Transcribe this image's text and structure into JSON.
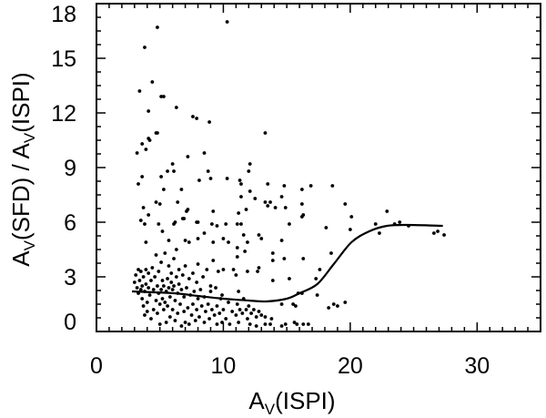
{
  "chart_data": {
    "type": "scatter",
    "title": "",
    "xlabel_parts": [
      "A",
      "V",
      "(ISPI)"
    ],
    "ylabel_parts": [
      "A",
      "V",
      "(SFD) / ",
      "A",
      "V",
      "(ISPI)"
    ],
    "xlim": [
      0,
      35
    ],
    "ylim": [
      0,
      18
    ],
    "xticks": [
      0,
      10,
      20,
      30
    ],
    "xtick_labels": [
      "0",
      "10",
      "20",
      "30"
    ],
    "yticks": [
      0,
      3,
      6,
      9,
      12,
      15,
      18
    ],
    "ytick_labels": [
      "0",
      "3",
      "6",
      "9",
      "12",
      "15",
      "18"
    ],
    "grid": false,
    "series": [
      {
        "name": "data points",
        "kind": "scatter",
        "color": "#000000",
        "points": [
          [
            4.8,
            16.7
          ],
          [
            10.3,
            17.0
          ],
          [
            3.8,
            15.6
          ],
          [
            4.4,
            13.7
          ],
          [
            3.4,
            13.2
          ],
          [
            5.1,
            12.9
          ],
          [
            5.3,
            12.9
          ],
          [
            6.3,
            12.3
          ],
          [
            4.1,
            12.1
          ],
          [
            7.6,
            11.8
          ],
          [
            7.9,
            11.7
          ],
          [
            8.9,
            11.5
          ],
          [
            13.3,
            10.9
          ],
          [
            4.7,
            10.9
          ],
          [
            4.8,
            10.9
          ],
          [
            4.2,
            10.5
          ],
          [
            4.1,
            10.6
          ],
          [
            3.6,
            10.3
          ],
          [
            3.9,
            10.0
          ],
          [
            3.2,
            9.8
          ],
          [
            7.2,
            9.6
          ],
          [
            8.5,
            9.8
          ],
          [
            6.0,
            9.2
          ],
          [
            12.1,
            9.2
          ],
          [
            8.8,
            8.8
          ],
          [
            5.6,
            8.8
          ],
          [
            6.1,
            8.8
          ],
          [
            12.0,
            8.8
          ],
          [
            3.6,
            8.5
          ],
          [
            5.1,
            8.5
          ],
          [
            9.0,
            8.4
          ],
          [
            10.3,
            8.4
          ],
          [
            8.1,
            8.3
          ],
          [
            11.3,
            8.3
          ],
          [
            3.3,
            8.1
          ],
          [
            11.4,
            8.1
          ],
          [
            13.5,
            8.1
          ],
          [
            14.8,
            8.0
          ],
          [
            16.9,
            8.0
          ],
          [
            18.6,
            8.0
          ],
          [
            16.2,
            7.8
          ],
          [
            5.3,
            7.8
          ],
          [
            6.7,
            7.8
          ],
          [
            12.1,
            7.7
          ],
          [
            14.6,
            7.4
          ],
          [
            11.4,
            7.4
          ],
          [
            12.5,
            7.3
          ],
          [
            13.3,
            7.1
          ],
          [
            13.7,
            7.1
          ],
          [
            6.4,
            7.1
          ],
          [
            4.7,
            7.1
          ],
          [
            5.0,
            7.0
          ],
          [
            19.6,
            7.0
          ],
          [
            16.2,
            7.0
          ],
          [
            13.5,
            6.9
          ],
          [
            7.2,
            6.7
          ],
          [
            7.1,
            6.6
          ],
          [
            3.7,
            6.8
          ],
          [
            9.2,
            6.6
          ],
          [
            11.2,
            6.5
          ],
          [
            22.9,
            6.6
          ],
          [
            11.8,
            6.7
          ],
          [
            14.9,
            6.8
          ],
          [
            14.1,
            6.8
          ],
          [
            16.2,
            6.3
          ],
          [
            16.3,
            6.4
          ],
          [
            20.1,
            6.3
          ],
          [
            4.1,
            6.4
          ],
          [
            6.8,
            6.2
          ],
          [
            6.9,
            6.2
          ],
          [
            3.5,
            6.1
          ],
          [
            3.8,
            5.9
          ],
          [
            4.9,
            5.9
          ],
          [
            6.1,
            5.9
          ],
          [
            6.2,
            6.0
          ],
          [
            7.9,
            6.0
          ],
          [
            8.0,
            6.0
          ],
          [
            9.1,
            5.9
          ],
          [
            9.5,
            5.8
          ],
          [
            10.2,
            5.9
          ],
          [
            11.1,
            5.9
          ],
          [
            11.4,
            5.9
          ],
          [
            15.2,
            5.9
          ],
          [
            18.1,
            5.7
          ],
          [
            20.0,
            5.6
          ],
          [
            22.0,
            5.9
          ],
          [
            23.5,
            5.9
          ],
          [
            23.9,
            6.0
          ],
          [
            24.6,
            5.8
          ],
          [
            5.2,
            5.5
          ],
          [
            8.5,
            5.4
          ],
          [
            11.6,
            5.3
          ],
          [
            12.8,
            5.3
          ],
          [
            13.0,
            5.1
          ],
          [
            22.3,
            5.4
          ],
          [
            26.6,
            5.4
          ],
          [
            26.9,
            5.5
          ],
          [
            27.4,
            5.3
          ],
          [
            3.9,
            4.9
          ],
          [
            5.7,
            5.0
          ],
          [
            7.0,
            5.0
          ],
          [
            7.3,
            4.9
          ],
          [
            8.0,
            5.1
          ],
          [
            9.2,
            4.9
          ],
          [
            10.0,
            5.1
          ],
          [
            10.4,
            4.9
          ],
          [
            11.9,
            4.9
          ],
          [
            14.6,
            5.0
          ],
          [
            11.1,
            4.6
          ],
          [
            11.7,
            4.4
          ],
          [
            13.9,
            4.3
          ],
          [
            18.5,
            4.3
          ],
          [
            16.3,
            4.0
          ],
          [
            14.8,
            4.0
          ],
          [
            11.1,
            4.1
          ],
          [
            13.9,
            3.9
          ],
          [
            17.6,
            3.4
          ],
          [
            17.3,
            2.9
          ],
          [
            15.2,
            2.9
          ],
          [
            13.9,
            2.8
          ],
          [
            12.8,
            3.5
          ],
          [
            12.7,
            3.3
          ],
          [
            11.9,
            3.3
          ],
          [
            11.0,
            3.1
          ],
          [
            17.4,
            2.0
          ],
          [
            15.9,
            2.1
          ],
          [
            16.2,
            2.1
          ],
          [
            14.6,
            1.5
          ],
          [
            15.5,
            1.5
          ],
          [
            15.7,
            1.4
          ],
          [
            18.7,
            1.5
          ],
          [
            19.0,
            1.4
          ],
          [
            18.3,
            1.3
          ],
          [
            19.6,
            1.6
          ],
          [
            11.2,
            2.2
          ],
          [
            9.9,
            2.0
          ],
          [
            12.6,
            0.3
          ],
          [
            13.3,
            0.4
          ],
          [
            13.7,
            0.4
          ],
          [
            14.6,
            0.3
          ],
          [
            14.9,
            0.4
          ],
          [
            15.6,
            0.5
          ],
          [
            15.8,
            0.4
          ],
          [
            16.3,
            0.4
          ],
          [
            16.7,
            0.4
          ],
          [
            13.8,
            0.7
          ],
          [
            13.3,
            0.8
          ],
          [
            3.0,
            2.7
          ],
          [
            3.1,
            3.1
          ],
          [
            3.2,
            2.4
          ],
          [
            3.3,
            3.4
          ],
          [
            3.3,
            2.1
          ],
          [
            3.4,
            2.8
          ],
          [
            3.5,
            2.3
          ],
          [
            3.5,
            3.3
          ],
          [
            3.6,
            1.8
          ],
          [
            3.6,
            2.5
          ],
          [
            3.7,
            1.4
          ],
          [
            3.7,
            3.0
          ],
          [
            3.8,
            0.9
          ],
          [
            3.8,
            2.2
          ],
          [
            3.9,
            3.4
          ],
          [
            3.9,
            2.6
          ],
          [
            4.0,
            1.6
          ],
          [
            4.0,
            1.1
          ],
          [
            4.1,
            2.4
          ],
          [
            4.1,
            3.2
          ],
          [
            4.2,
            2.0
          ],
          [
            4.3,
            2.8
          ],
          [
            4.3,
            0.7
          ],
          [
            4.4,
            3.5
          ],
          [
            4.5,
            2.3
          ],
          [
            4.5,
            1.2
          ],
          [
            4.6,
            3.0
          ],
          [
            4.7,
            1.7
          ],
          [
            4.7,
            4.2
          ],
          [
            4.8,
            2.5
          ],
          [
            4.8,
            1.0
          ],
          [
            4.9,
            2.1
          ],
          [
            4.9,
            3.3
          ],
          [
            5.0,
            1.5
          ],
          [
            5.0,
            0.4
          ],
          [
            5.1,
            2.3
          ],
          [
            5.1,
            3.8
          ],
          [
            5.2,
            1.8
          ],
          [
            5.2,
            2.8
          ],
          [
            5.3,
            1.2
          ],
          [
            5.3,
            2.5
          ],
          [
            5.4,
            1.6
          ],
          [
            5.4,
            4.3
          ],
          [
            5.5,
            2.2
          ],
          [
            5.5,
            0.5
          ],
          [
            5.6,
            2.9
          ],
          [
            5.6,
            1.4
          ],
          [
            5.7,
            2.4
          ],
          [
            5.7,
            3.6
          ],
          [
            5.8,
            1.9
          ],
          [
            5.8,
            0.8
          ],
          [
            5.9,
            2.7
          ],
          [
            5.9,
            3.2
          ],
          [
            6.0,
            2.3
          ],
          [
            6.0,
            1.2
          ],
          [
            6.1,
            2.5
          ],
          [
            6.1,
            4.0
          ],
          [
            6.2,
            1.7
          ],
          [
            6.2,
            0.6
          ],
          [
            6.3,
            3.0
          ],
          [
            6.3,
            4.5
          ],
          [
            6.4,
            2.1
          ],
          [
            6.4,
            1.0
          ],
          [
            6.5,
            2.6
          ],
          [
            6.5,
            3.4
          ],
          [
            6.6,
            1.5
          ],
          [
            6.7,
            2.3
          ],
          [
            6.7,
            0.3
          ],
          [
            6.8,
            3.1
          ],
          [
            6.9,
            1.1
          ],
          [
            6.9,
            1.9
          ],
          [
            7.0,
            3.6
          ],
          [
            7.0,
            0.5
          ],
          [
            7.1,
            2.4
          ],
          [
            7.2,
            1.3
          ],
          [
            7.3,
            2.9
          ],
          [
            7.3,
            0.4
          ],
          [
            7.4,
            2.0
          ],
          [
            7.5,
            0.9
          ],
          [
            7.6,
            3.2
          ],
          [
            7.6,
            1.5
          ],
          [
            7.7,
            2.2
          ],
          [
            7.8,
            0.6
          ],
          [
            7.9,
            2.7
          ],
          [
            7.9,
            1.2
          ],
          [
            8.0,
            1.8
          ],
          [
            8.0,
            3.7
          ],
          [
            8.1,
            0.8
          ],
          [
            8.2,
            2.3
          ],
          [
            8.3,
            1.4
          ],
          [
            8.4,
            3.0
          ],
          [
            8.5,
            0.5
          ],
          [
            8.5,
            1.9
          ],
          [
            8.6,
            1.1
          ],
          [
            8.7,
            3.4
          ],
          [
            8.8,
            1.5
          ],
          [
            8.9,
            0.7
          ],
          [
            9.0,
            2.5
          ],
          [
            9.0,
            2.2
          ],
          [
            9.1,
            1.2
          ],
          [
            9.2,
            3.9
          ],
          [
            9.3,
            0.9
          ],
          [
            9.4,
            2.4
          ],
          [
            9.5,
            0.4
          ],
          [
            9.5,
            1.4
          ],
          [
            9.6,
            3.3
          ],
          [
            9.7,
            1.0
          ],
          [
            9.8,
            1.8
          ],
          [
            9.9,
            0.5
          ],
          [
            10.0,
            3.4
          ],
          [
            10.0,
            1.2
          ],
          [
            10.2,
            0.7
          ],
          [
            10.4,
            1.6
          ],
          [
            10.5,
            0.4
          ],
          [
            10.7,
            1.1
          ],
          [
            10.8,
            3.4
          ],
          [
            11.0,
            0.9
          ],
          [
            11.1,
            1.5
          ],
          [
            11.2,
            0.5
          ],
          [
            11.3,
            1.2
          ],
          [
            11.5,
            1.0
          ],
          [
            11.6,
            1.8
          ],
          [
            11.8,
            1.2
          ],
          [
            11.9,
            0.7
          ],
          [
            12.0,
            1.4
          ],
          [
            12.1,
            0.4
          ],
          [
            12.2,
            1.0
          ],
          [
            12.4,
            1.2
          ],
          [
            12.6,
            0.8
          ],
          [
            12.8,
            1.1
          ],
          [
            13.0,
            0.9
          ]
        ]
      },
      {
        "name": "smooth fit",
        "kind": "line",
        "color": "#000000",
        "points": [
          [
            2.8,
            2.2
          ],
          [
            6.1,
            2.1
          ],
          [
            8.0,
            1.95
          ],
          [
            10.0,
            1.8
          ],
          [
            12.0,
            1.7
          ],
          [
            13.4,
            1.65
          ],
          [
            15.0,
            1.8
          ],
          [
            16.0,
            2.1
          ],
          [
            17.4,
            2.6
          ],
          [
            18.7,
            3.7
          ],
          [
            20.1,
            4.9
          ],
          [
            21.5,
            5.5
          ],
          [
            22.9,
            5.8
          ],
          [
            24.5,
            5.85
          ],
          [
            27.3,
            5.8
          ]
        ]
      }
    ]
  }
}
